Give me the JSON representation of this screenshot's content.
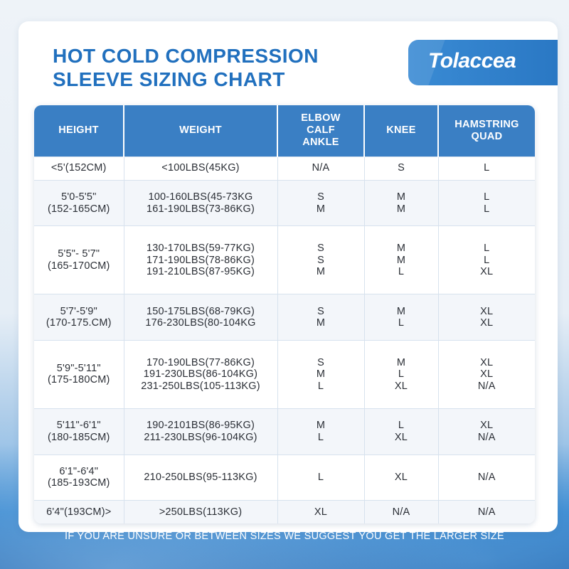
{
  "title": {
    "line1": "HOT COLD COMPRESSION",
    "line2": "SLEEVE SIZING CHART"
  },
  "brand": "Tolaccea",
  "table": {
    "headers": [
      [
        "HEIGHT"
      ],
      [
        "WEIGHT"
      ],
      [
        "ELBOW",
        "CALF",
        "ANKLE"
      ],
      [
        "KNEE"
      ],
      [
        "HAMSTRING",
        "QUAD"
      ]
    ],
    "rows": [
      [
        [
          "<5'(152CM)"
        ],
        [
          "<100LBS(45KG)"
        ],
        [
          "N/A"
        ],
        [
          "S"
        ],
        [
          "L"
        ]
      ],
      [
        [
          "5'0-5'5\"",
          "(152-165CM)"
        ],
        [
          "100-160LBS(45-73KG",
          "161-190LBS(73-86KG)"
        ],
        [
          "S",
          "M"
        ],
        [
          "M",
          "M"
        ],
        [
          "L",
          "L"
        ]
      ],
      [
        [
          "5'5\"- 5'7\"",
          "(165-170CM)"
        ],
        [
          "130-170LBS(59-77KG)",
          "171-190LBS(78-86KG)",
          "191-210LBS(87-95KG)"
        ],
        [
          "S",
          "S",
          "M"
        ],
        [
          "M",
          "M",
          "L"
        ],
        [
          "L",
          "L",
          "XL"
        ]
      ],
      [
        [
          "5'7'-5'9\"",
          "(170-175.CM)"
        ],
        [
          "150-175LBS(68-79KG)",
          "176-230LBS(80-104KG"
        ],
        [
          "S",
          "M"
        ],
        [
          "M",
          "L"
        ],
        [
          "XL",
          "XL"
        ]
      ],
      [
        [
          "5'9\"-5'11\"",
          "(175-180CM)"
        ],
        [
          "170-190LBS(77-86KG)",
          "191-230LBS(86-104KG)",
          "231-250LBS(105-113KG)"
        ],
        [
          "S",
          "M",
          "L"
        ],
        [
          "M",
          "L",
          "XL"
        ],
        [
          "XL",
          "XL",
          "N/A"
        ]
      ],
      [
        [
          "5'11\"-6'1\"",
          "(180-185CM)"
        ],
        [
          "190-2101BS(86-95KG)",
          "211-230LBS(96-104KG)"
        ],
        [
          "M",
          "L"
        ],
        [
          "L",
          "XL"
        ],
        [
          "XL",
          "N/A"
        ]
      ],
      [
        [
          "6'1\"-6'4\"",
          "(185-193CM)"
        ],
        [
          "210-250LBS(95-113KG)"
        ],
        [
          "L"
        ],
        [
          "XL"
        ],
        [
          "N/A"
        ]
      ],
      [
        [
          "6'4\"(193CM)>"
        ],
        [
          ">250LBS(113KG)"
        ],
        [
          "XL"
        ],
        [
          "N/A"
        ],
        [
          "N/A"
        ]
      ]
    ]
  },
  "footer": "IF YOU ARE UNSURE OR BETWEEN SIZES WE SUGGEST YOU GET THE LARGER SIZE",
  "colors": {
    "accent": "#2170be",
    "header_bg": "#3a7fc4",
    "brand_bg": "#2a78c4"
  }
}
